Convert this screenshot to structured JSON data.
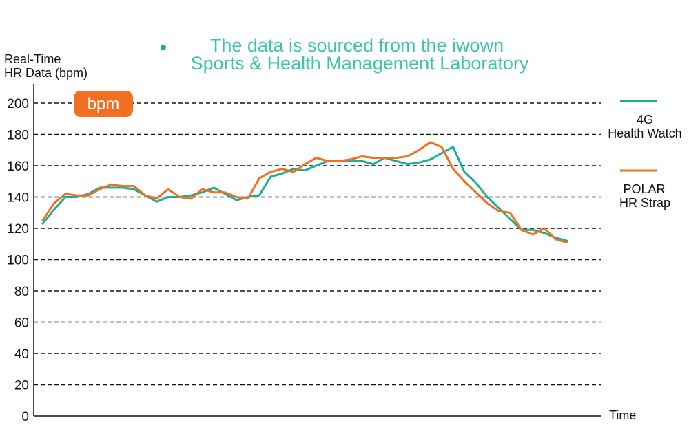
{
  "chart_data": {
    "type": "line",
    "ylabel": [
      "Real-Time",
      "HR Data (bpm)"
    ],
    "xlabel": "Time",
    "ylim": [
      0,
      200
    ],
    "yticks": [
      0,
      20,
      40,
      60,
      80,
      100,
      120,
      140,
      160,
      180,
      200
    ],
    "grid": true,
    "note": [
      "The data is sourced from the iwown",
      "Sports & Health Management Laboratory"
    ],
    "badge": "bpm",
    "legend_position": "right",
    "series": [
      {
        "name": [
          "4G",
          "Health Watch"
        ],
        "color": "#1aaf95",
        "values": [
          123,
          132,
          140,
          140,
          142,
          146,
          146,
          146,
          145,
          141,
          137,
          140,
          140,
          141,
          143,
          146,
          142,
          138,
          140,
          141,
          153,
          155,
          158,
          157,
          160,
          163,
          163,
          163,
          163,
          161,
          165,
          163,
          161,
          162,
          164,
          168,
          172,
          156,
          149,
          140,
          133,
          126,
          119,
          119,
          117,
          114,
          112
        ]
      },
      {
        "name": [
          "POLAR",
          "HR Strap"
        ],
        "color": "#f26f21",
        "values": [
          125,
          136,
          142,
          141,
          141,
          145,
          148,
          147,
          147,
          141,
          139,
          145,
          140,
          139,
          145,
          143,
          143,
          140,
          139,
          152,
          156,
          158,
          156,
          161,
          165,
          163,
          163,
          164,
          166,
          165,
          165,
          165,
          166,
          170,
          175,
          172,
          158,
          150,
          143,
          136,
          131,
          130,
          119,
          116,
          120,
          113,
          111
        ]
      }
    ]
  }
}
